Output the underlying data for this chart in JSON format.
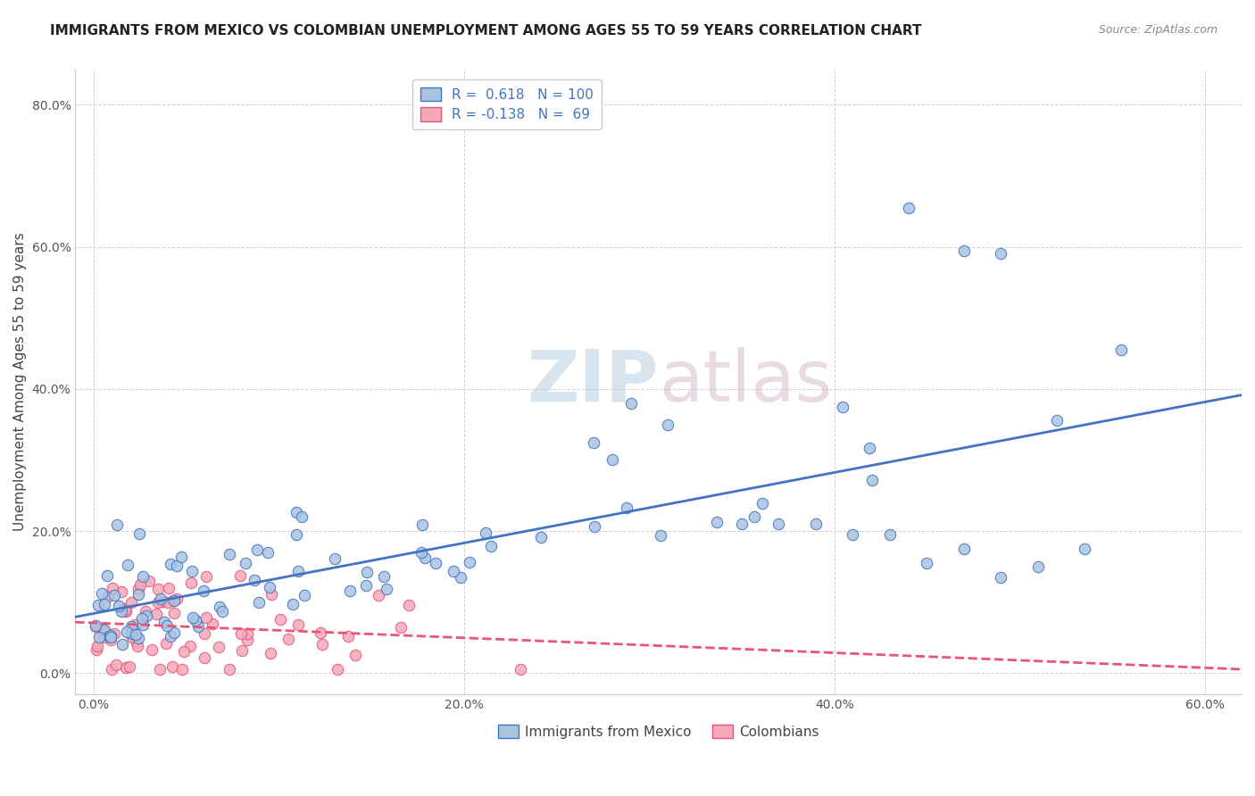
{
  "title": "IMMIGRANTS FROM MEXICO VS COLOMBIAN UNEMPLOYMENT AMONG AGES 55 TO 59 YEARS CORRELATION CHART",
  "source": "Source: ZipAtlas.com",
  "xlim": [
    -0.01,
    0.62
  ],
  "ylim": [
    -0.03,
    0.85
  ],
  "ylabel": "Unemployment Among Ages 55 to 59 years",
  "legend_label1": "Immigrants from Mexico",
  "legend_label2": "Colombians",
  "R1": 0.618,
  "N1": 100,
  "R2": -0.138,
  "N2": 69,
  "color_mexico": "#a8c4e0",
  "color_colombia": "#f4a8b8",
  "line_color_mexico": "#4472c4",
  "line_color_colombia": "#e8547a",
  "watermark_zip": "ZIP",
  "watermark_atlas": "atlas"
}
